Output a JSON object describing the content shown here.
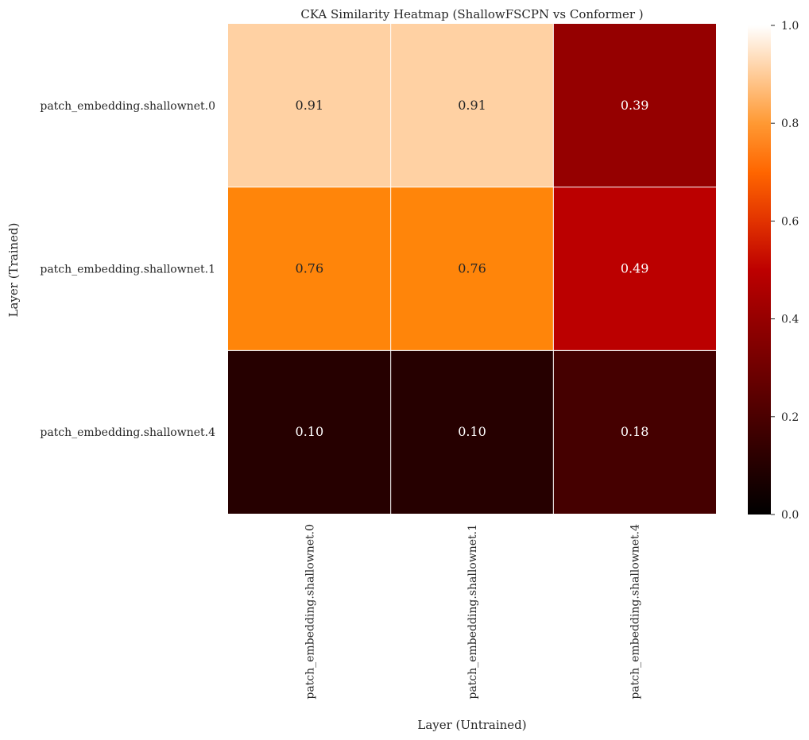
{
  "chart_data": {
    "type": "heatmap",
    "title": "CKA Similarity Heatmap (ShallowFSCPN vs Conformer )",
    "xlabel": "Layer (Untrained)",
    "ylabel": "Layer (Trained)",
    "x_categories": [
      "patch_embedding.shallownet.0",
      "patch_embedding.shallownet.1",
      "patch_embedding.shallownet.4"
    ],
    "y_categories": [
      "patch_embedding.shallownet.0",
      "patch_embedding.shallownet.1",
      "patch_embedding.shallownet.4"
    ],
    "values": [
      [
        0.91,
        0.91,
        0.39
      ],
      [
        0.76,
        0.76,
        0.49
      ],
      [
        0.1,
        0.1,
        0.18
      ]
    ],
    "value_labels": [
      [
        "0.91",
        "0.91",
        "0.39"
      ],
      [
        "0.76",
        "0.76",
        "0.49"
      ],
      [
        "0.10",
        "0.10",
        "0.18"
      ]
    ],
    "colormap": "gist_heat",
    "vmin": 0.0,
    "vmax": 1.0,
    "colorbar_ticks": [
      "0.0",
      "0.2",
      "0.4",
      "0.6",
      "0.8",
      "1.0"
    ]
  }
}
